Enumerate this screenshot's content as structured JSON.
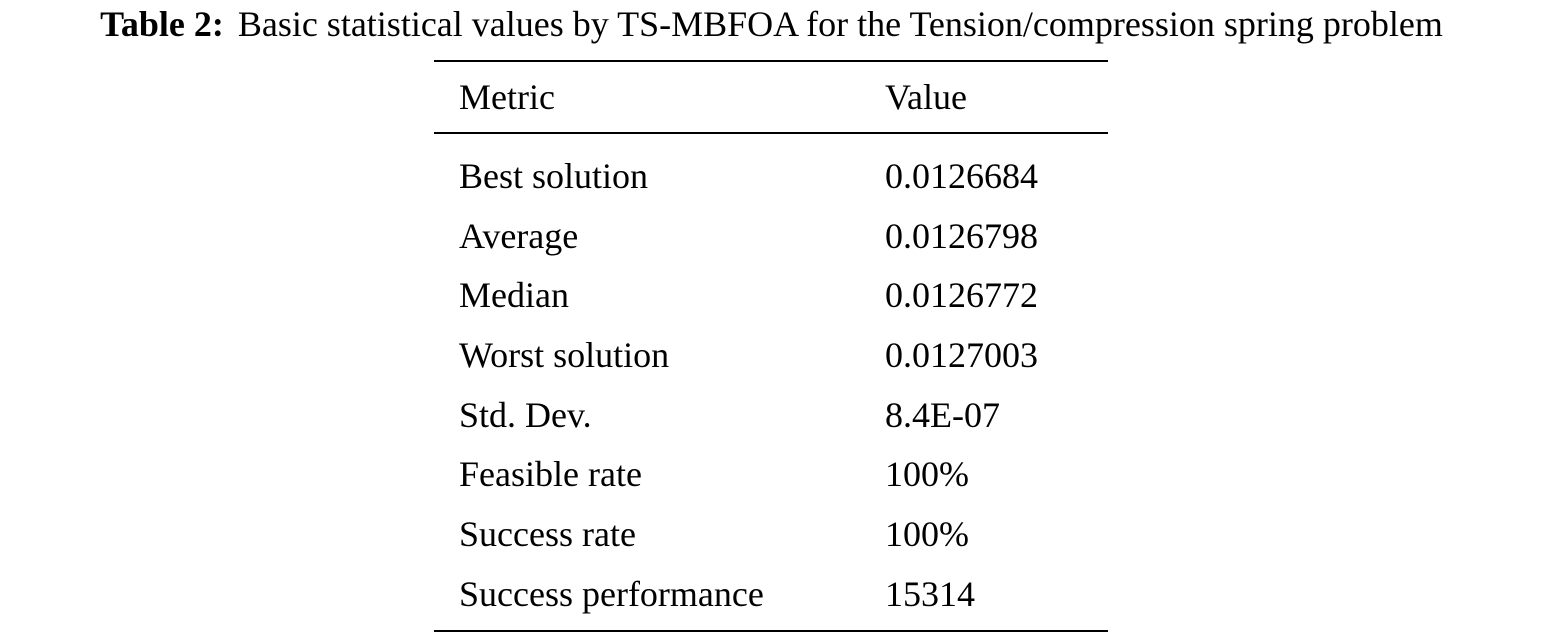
{
  "caption": {
    "label": "Table 2:",
    "text": "Basic statistical values by TS-MBFOA for the Tension/compression spring problem"
  },
  "table": {
    "headers": [
      "Metric",
      "Value"
    ],
    "rows": [
      [
        "Best solution",
        "0.0126684"
      ],
      [
        "Average",
        "0.0126798"
      ],
      [
        "Median",
        "0.0126772"
      ],
      [
        "Worst solution",
        "0.0127003"
      ],
      [
        "Std. Dev.",
        "8.4E-07"
      ],
      [
        "Feasible rate",
        "100%"
      ],
      [
        "Success rate",
        "100%"
      ],
      [
        "Success performance",
        "15314"
      ]
    ]
  }
}
